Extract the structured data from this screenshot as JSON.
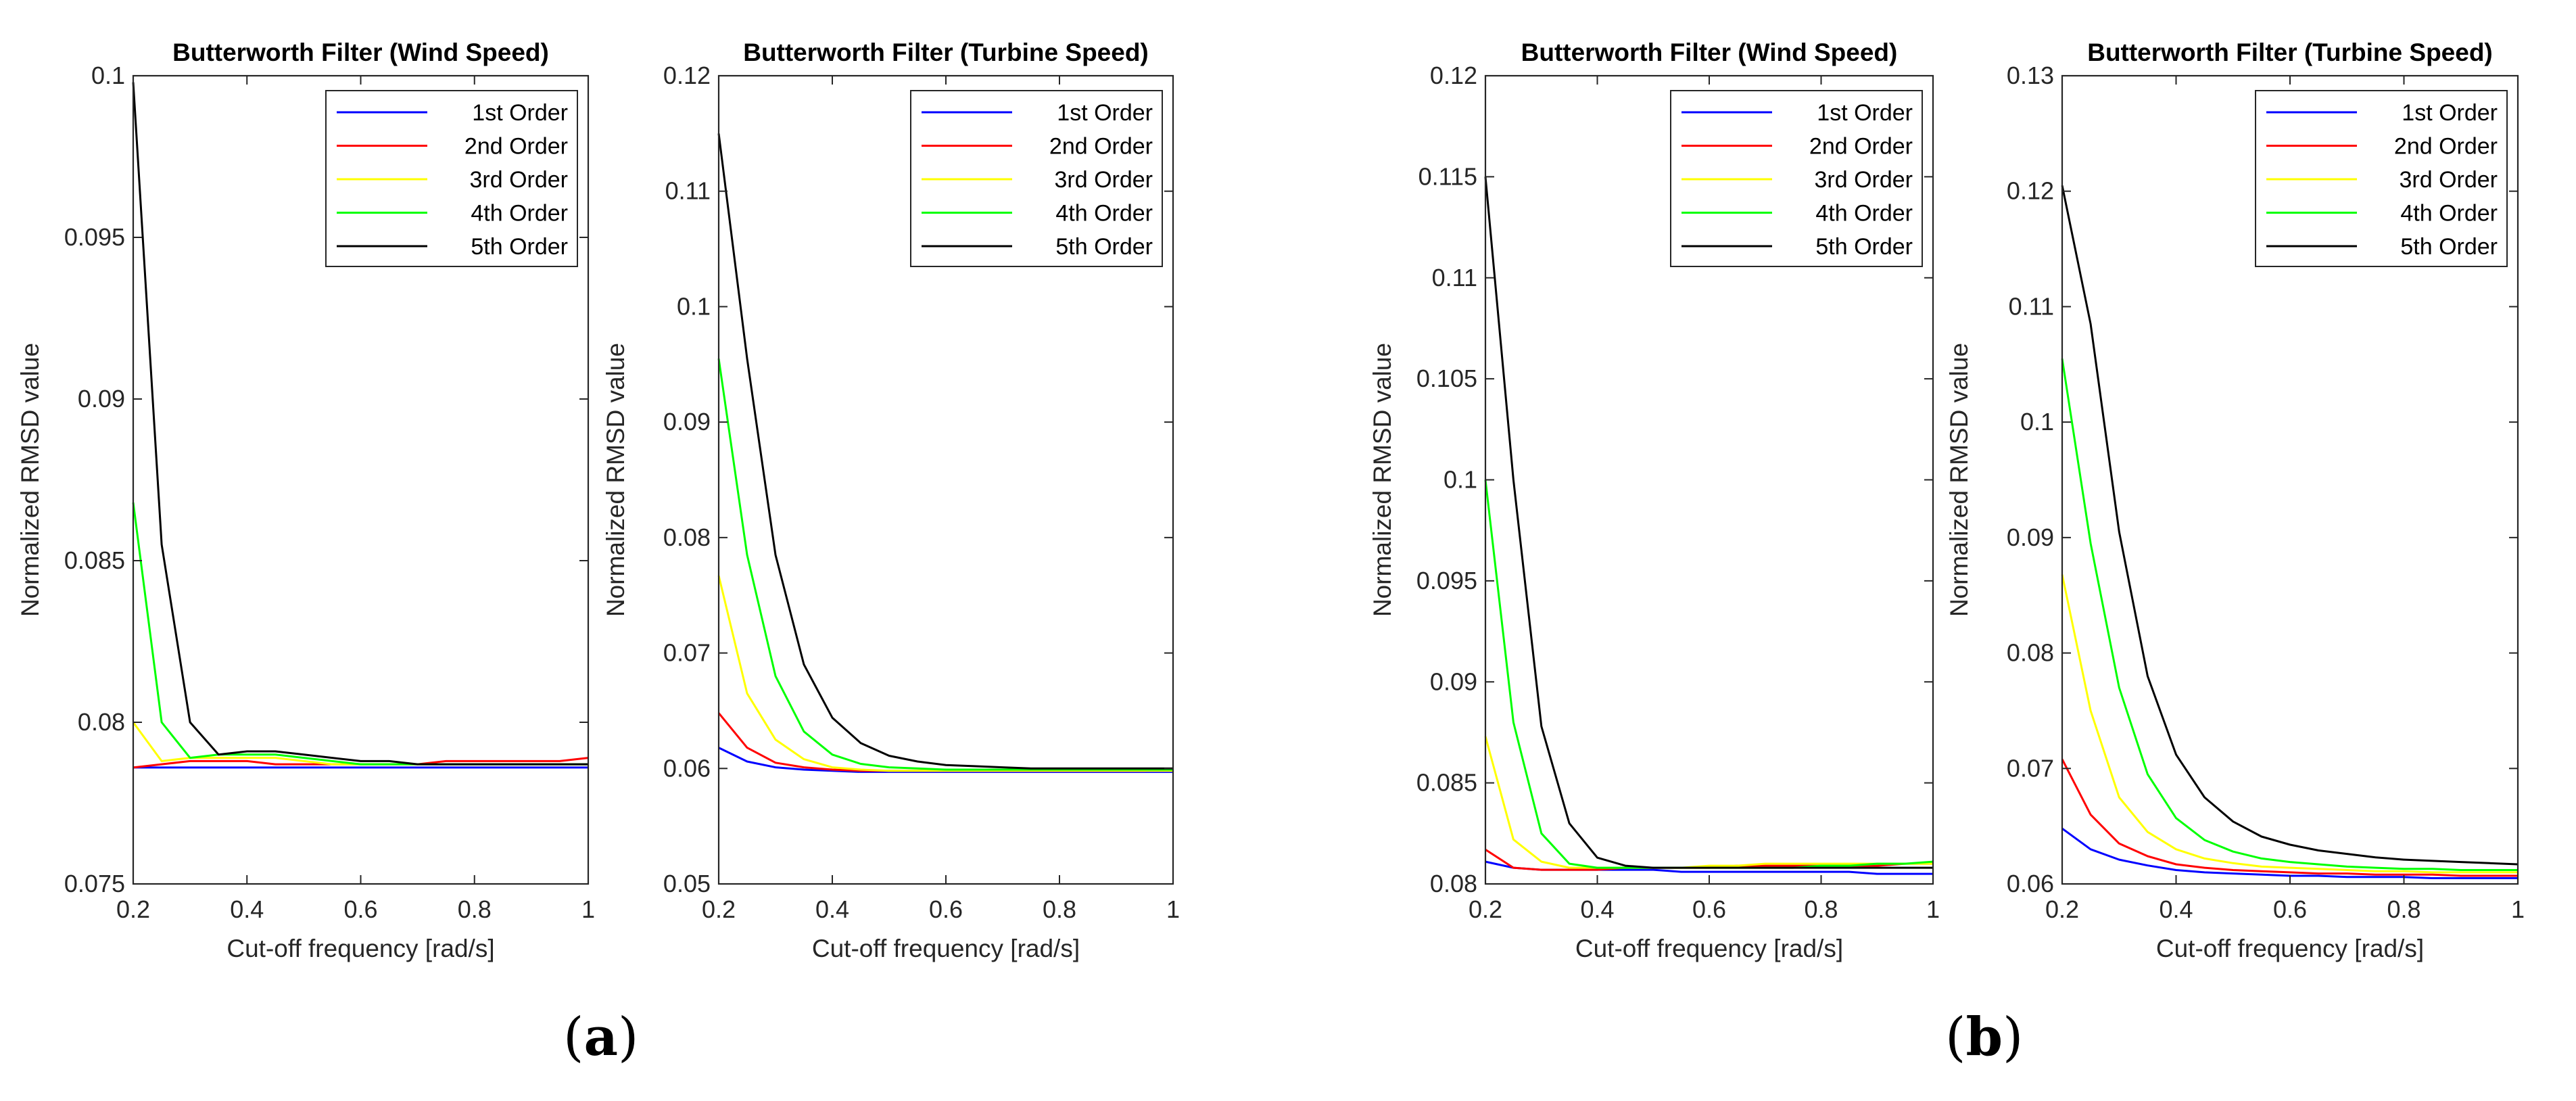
{
  "panel_labels": {
    "a": "a",
    "b": "b"
  },
  "chart_data": [
    {
      "type": "line",
      "panel": "a",
      "title": "Butterworth Filter (Wind Speed)",
      "xlabel": "Cut-off frequency [rad/s]",
      "ylabel": "Normalized RMSD value",
      "xlim": [
        0.2,
        1
      ],
      "ylim": [
        0.075,
        0.1
      ],
      "xticks": [
        0.2,
        0.4,
        0.6,
        0.8,
        1
      ],
      "xtick_labels": [
        "0.2",
        "0.4",
        "0.6",
        "0.8",
        "1"
      ],
      "yticks": [
        0.075,
        0.08,
        0.085,
        0.09,
        0.095,
        0.1
      ],
      "ytick_labels": [
        "0.075",
        "0.08",
        "0.085",
        "0.09",
        "0.095",
        "0.1"
      ],
      "legend": "top-right",
      "x": [
        0.2,
        0.25,
        0.3,
        0.35,
        0.4,
        0.45,
        0.5,
        0.55,
        0.6,
        0.65,
        0.7,
        0.75,
        0.8,
        0.85,
        0.9,
        0.95,
        1.0
      ],
      "series": [
        {
          "name": "1st Order",
          "color": "#0000ff",
          "values": [
            0.0786,
            0.0786,
            0.0786,
            0.0786,
            0.0786,
            0.0786,
            0.0786,
            0.0786,
            0.0786,
            0.0786,
            0.0786,
            0.0786,
            0.0786,
            0.0786,
            0.0786,
            0.0786,
            0.0786
          ]
        },
        {
          "name": "2nd Order",
          "color": "#ff0000",
          "values": [
            0.0786,
            0.0787,
            0.0788,
            0.0788,
            0.0788,
            0.0787,
            0.0787,
            0.0787,
            0.0787,
            0.0787,
            0.0787,
            0.0788,
            0.0788,
            0.0788,
            0.0788,
            0.0788,
            0.0789
          ]
        },
        {
          "name": "3rd Order",
          "color": "#ffff00",
          "values": [
            0.08,
            0.0788,
            0.0789,
            0.0789,
            0.0789,
            0.0789,
            0.0788,
            0.0787,
            0.0787,
            0.0787,
            0.0787,
            0.0787,
            0.0787,
            0.0787,
            0.0787,
            0.0787,
            0.0787
          ]
        },
        {
          "name": "4th Order",
          "color": "#00ff00",
          "values": [
            0.0868,
            0.08,
            0.0789,
            0.079,
            0.079,
            0.079,
            0.0789,
            0.0788,
            0.0787,
            0.0787,
            0.0787,
            0.0787,
            0.0787,
            0.0787,
            0.0787,
            0.0787,
            0.0787
          ]
        },
        {
          "name": "5th Order",
          "color": "#000000",
          "values": [
            0.0998,
            0.0855,
            0.08,
            0.079,
            0.0791,
            0.0791,
            0.079,
            0.0789,
            0.0788,
            0.0788,
            0.0787,
            0.0787,
            0.0787,
            0.0787,
            0.0787,
            0.0787,
            0.0787
          ]
        }
      ]
    },
    {
      "type": "line",
      "panel": "a",
      "title": "Butterworth Filter (Turbine Speed)",
      "xlabel": "Cut-off frequency [rad/s]",
      "ylabel": "Normalized RMSD value",
      "xlim": [
        0.2,
        1
      ],
      "ylim": [
        0.05,
        0.12
      ],
      "xticks": [
        0.2,
        0.4,
        0.6,
        0.8,
        1
      ],
      "xtick_labels": [
        "0.2",
        "0.4",
        "0.6",
        "0.8",
        "1"
      ],
      "yticks": [
        0.05,
        0.06,
        0.07,
        0.08,
        0.09,
        0.1,
        0.11,
        0.12
      ],
      "ytick_labels": [
        "0.05",
        "0.06",
        "0.07",
        "0.08",
        "0.09",
        "0.1",
        "0.11",
        "0.12"
      ],
      "legend": "top-right",
      "x": [
        0.2,
        0.25,
        0.3,
        0.35,
        0.4,
        0.45,
        0.5,
        0.55,
        0.6,
        0.65,
        0.7,
        0.75,
        0.8,
        0.85,
        0.9,
        0.95,
        1.0
      ],
      "series": [
        {
          "name": "1st Order",
          "color": "#0000ff",
          "values": [
            0.0618,
            0.0606,
            0.0601,
            0.0599,
            0.0598,
            0.0597,
            0.0597,
            0.0597,
            0.0597,
            0.0597,
            0.0597,
            0.0597,
            0.0597,
            0.0597,
            0.0597,
            0.0597,
            0.0597
          ]
        },
        {
          "name": "2nd Order",
          "color": "#ff0000",
          "values": [
            0.0648,
            0.0618,
            0.0605,
            0.0601,
            0.0599,
            0.0598,
            0.0598,
            0.0598,
            0.0598,
            0.0598,
            0.0598,
            0.0598,
            0.0598,
            0.0598,
            0.0598,
            0.0598,
            0.06
          ]
        },
        {
          "name": "3rd Order",
          "color": "#ffff00",
          "values": [
            0.0767,
            0.0665,
            0.0625,
            0.0608,
            0.0601,
            0.0599,
            0.0598,
            0.0598,
            0.0598,
            0.0598,
            0.0598,
            0.0598,
            0.0598,
            0.0598,
            0.0598,
            0.0598,
            0.0598
          ]
        },
        {
          "name": "4th Order",
          "color": "#00ff00",
          "values": [
            0.0955,
            0.0785,
            0.068,
            0.0632,
            0.0612,
            0.0604,
            0.0601,
            0.06,
            0.0599,
            0.0599,
            0.0599,
            0.0599,
            0.0599,
            0.0599,
            0.0599,
            0.0599,
            0.0599
          ]
        },
        {
          "name": "5th Order",
          "color": "#000000",
          "values": [
            0.115,
            0.0955,
            0.0785,
            0.069,
            0.0644,
            0.0622,
            0.0611,
            0.0606,
            0.0603,
            0.0602,
            0.0601,
            0.06,
            0.06,
            0.06,
            0.06,
            0.06,
            0.06
          ]
        }
      ]
    },
    {
      "type": "line",
      "panel": "b",
      "title": "Butterworth Filter (Wind Speed)",
      "xlabel": "Cut-off frequency [rad/s]",
      "ylabel": "Normalized RMSD value",
      "xlim": [
        0.2,
        1
      ],
      "ylim": [
        0.08,
        0.12
      ],
      "xticks": [
        0.2,
        0.4,
        0.6,
        0.8,
        1
      ],
      "xtick_labels": [
        "0.2",
        "0.4",
        "0.6",
        "0.8",
        "1"
      ],
      "yticks": [
        0.08,
        0.085,
        0.09,
        0.095,
        0.1,
        0.105,
        0.11,
        0.115,
        0.12
      ],
      "ytick_labels": [
        "0.08",
        "0.085",
        "0.09",
        "0.095",
        "0.1",
        "0.105",
        "0.11",
        "0.115",
        "0.12"
      ],
      "legend": "top-right",
      "x": [
        0.2,
        0.25,
        0.3,
        0.35,
        0.4,
        0.45,
        0.5,
        0.55,
        0.6,
        0.65,
        0.7,
        0.75,
        0.8,
        0.85,
        0.9,
        0.95,
        1.0
      ],
      "series": [
        {
          "name": "1st Order",
          "color": "#0000ff",
          "values": [
            0.0811,
            0.0808,
            0.0807,
            0.0807,
            0.0807,
            0.0807,
            0.0807,
            0.0806,
            0.0806,
            0.0806,
            0.0806,
            0.0806,
            0.0806,
            0.0806,
            0.0805,
            0.0805,
            0.0805
          ]
        },
        {
          "name": "2nd Order",
          "color": "#ff0000",
          "values": [
            0.0817,
            0.0808,
            0.0807,
            0.0807,
            0.0807,
            0.0808,
            0.0808,
            0.0808,
            0.0808,
            0.0809,
            0.0809,
            0.0809,
            0.0809,
            0.0809,
            0.0809,
            0.081,
            0.081
          ]
        },
        {
          "name": "3rd Order",
          "color": "#ffff00",
          "values": [
            0.0873,
            0.0822,
            0.0811,
            0.0808,
            0.0808,
            0.0808,
            0.0808,
            0.0808,
            0.0809,
            0.0809,
            0.081,
            0.081,
            0.081,
            0.081,
            0.081,
            0.081,
            0.081
          ]
        },
        {
          "name": "4th Order",
          "color": "#00ff00",
          "values": [
            0.1,
            0.088,
            0.0825,
            0.081,
            0.0808,
            0.0808,
            0.0808,
            0.0808,
            0.0808,
            0.0808,
            0.0808,
            0.0808,
            0.0809,
            0.0809,
            0.081,
            0.081,
            0.0811
          ]
        },
        {
          "name": "5th Order",
          "color": "#000000",
          "values": [
            0.115,
            0.1,
            0.0878,
            0.083,
            0.0813,
            0.0809,
            0.0808,
            0.0808,
            0.0808,
            0.0808,
            0.0808,
            0.0808,
            0.0808,
            0.0808,
            0.0808,
            0.0808,
            0.0808
          ]
        }
      ]
    },
    {
      "type": "line",
      "panel": "b",
      "title": "Butterworth Filter (Turbine Speed)",
      "xlabel": "Cut-off frequency [rad/s]",
      "ylabel": "Normalized RMSD value",
      "xlim": [
        0.2,
        1
      ],
      "ylim": [
        0.06,
        0.13
      ],
      "xticks": [
        0.2,
        0.4,
        0.6,
        0.8,
        1
      ],
      "xtick_labels": [
        "0.2",
        "0.4",
        "0.6",
        "0.8",
        "1"
      ],
      "yticks": [
        0.06,
        0.07,
        0.08,
        0.09,
        0.1,
        0.11,
        0.12,
        0.13
      ],
      "ytick_labels": [
        "0.06",
        "0.07",
        "0.08",
        "0.09",
        "0.1",
        "0.11",
        "0.12",
        "0.13"
      ],
      "legend": "top-right",
      "x": [
        0.2,
        0.25,
        0.3,
        0.35,
        0.4,
        0.45,
        0.5,
        0.55,
        0.6,
        0.65,
        0.7,
        0.75,
        0.8,
        0.85,
        0.9,
        0.95,
        1.0
      ],
      "series": [
        {
          "name": "1st Order",
          "color": "#0000ff",
          "values": [
            0.0648,
            0.063,
            0.0621,
            0.0616,
            0.0612,
            0.061,
            0.0609,
            0.0608,
            0.0607,
            0.0607,
            0.0606,
            0.0606,
            0.0606,
            0.0605,
            0.0605,
            0.0605,
            0.0605
          ]
        },
        {
          "name": "2nd Order",
          "color": "#ff0000",
          "values": [
            0.0708,
            0.066,
            0.0635,
            0.0624,
            0.0617,
            0.0614,
            0.0612,
            0.0611,
            0.061,
            0.0609,
            0.0609,
            0.0608,
            0.0608,
            0.0608,
            0.0607,
            0.0607,
            0.0607
          ]
        },
        {
          "name": "3rd Order",
          "color": "#ffff00",
          "values": [
            0.0868,
            0.075,
            0.0675,
            0.0645,
            0.063,
            0.0622,
            0.0618,
            0.0615,
            0.0614,
            0.0613,
            0.0612,
            0.0611,
            0.0611,
            0.061,
            0.061,
            0.061,
            0.061
          ]
        },
        {
          "name": "4th Order",
          "color": "#00ff00",
          "values": [
            0.1055,
            0.0895,
            0.077,
            0.0695,
            0.0657,
            0.0638,
            0.0628,
            0.0622,
            0.0619,
            0.0617,
            0.0615,
            0.0614,
            0.0613,
            0.0613,
            0.0612,
            0.0612,
            0.0612
          ]
        },
        {
          "name": "5th Order",
          "color": "#000000",
          "values": [
            0.1205,
            0.1085,
            0.0905,
            0.078,
            0.0712,
            0.0675,
            0.0654,
            0.0641,
            0.0634,
            0.0629,
            0.0626,
            0.0623,
            0.0621,
            0.062,
            0.0619,
            0.0618,
            0.0617
          ]
        }
      ]
    }
  ]
}
